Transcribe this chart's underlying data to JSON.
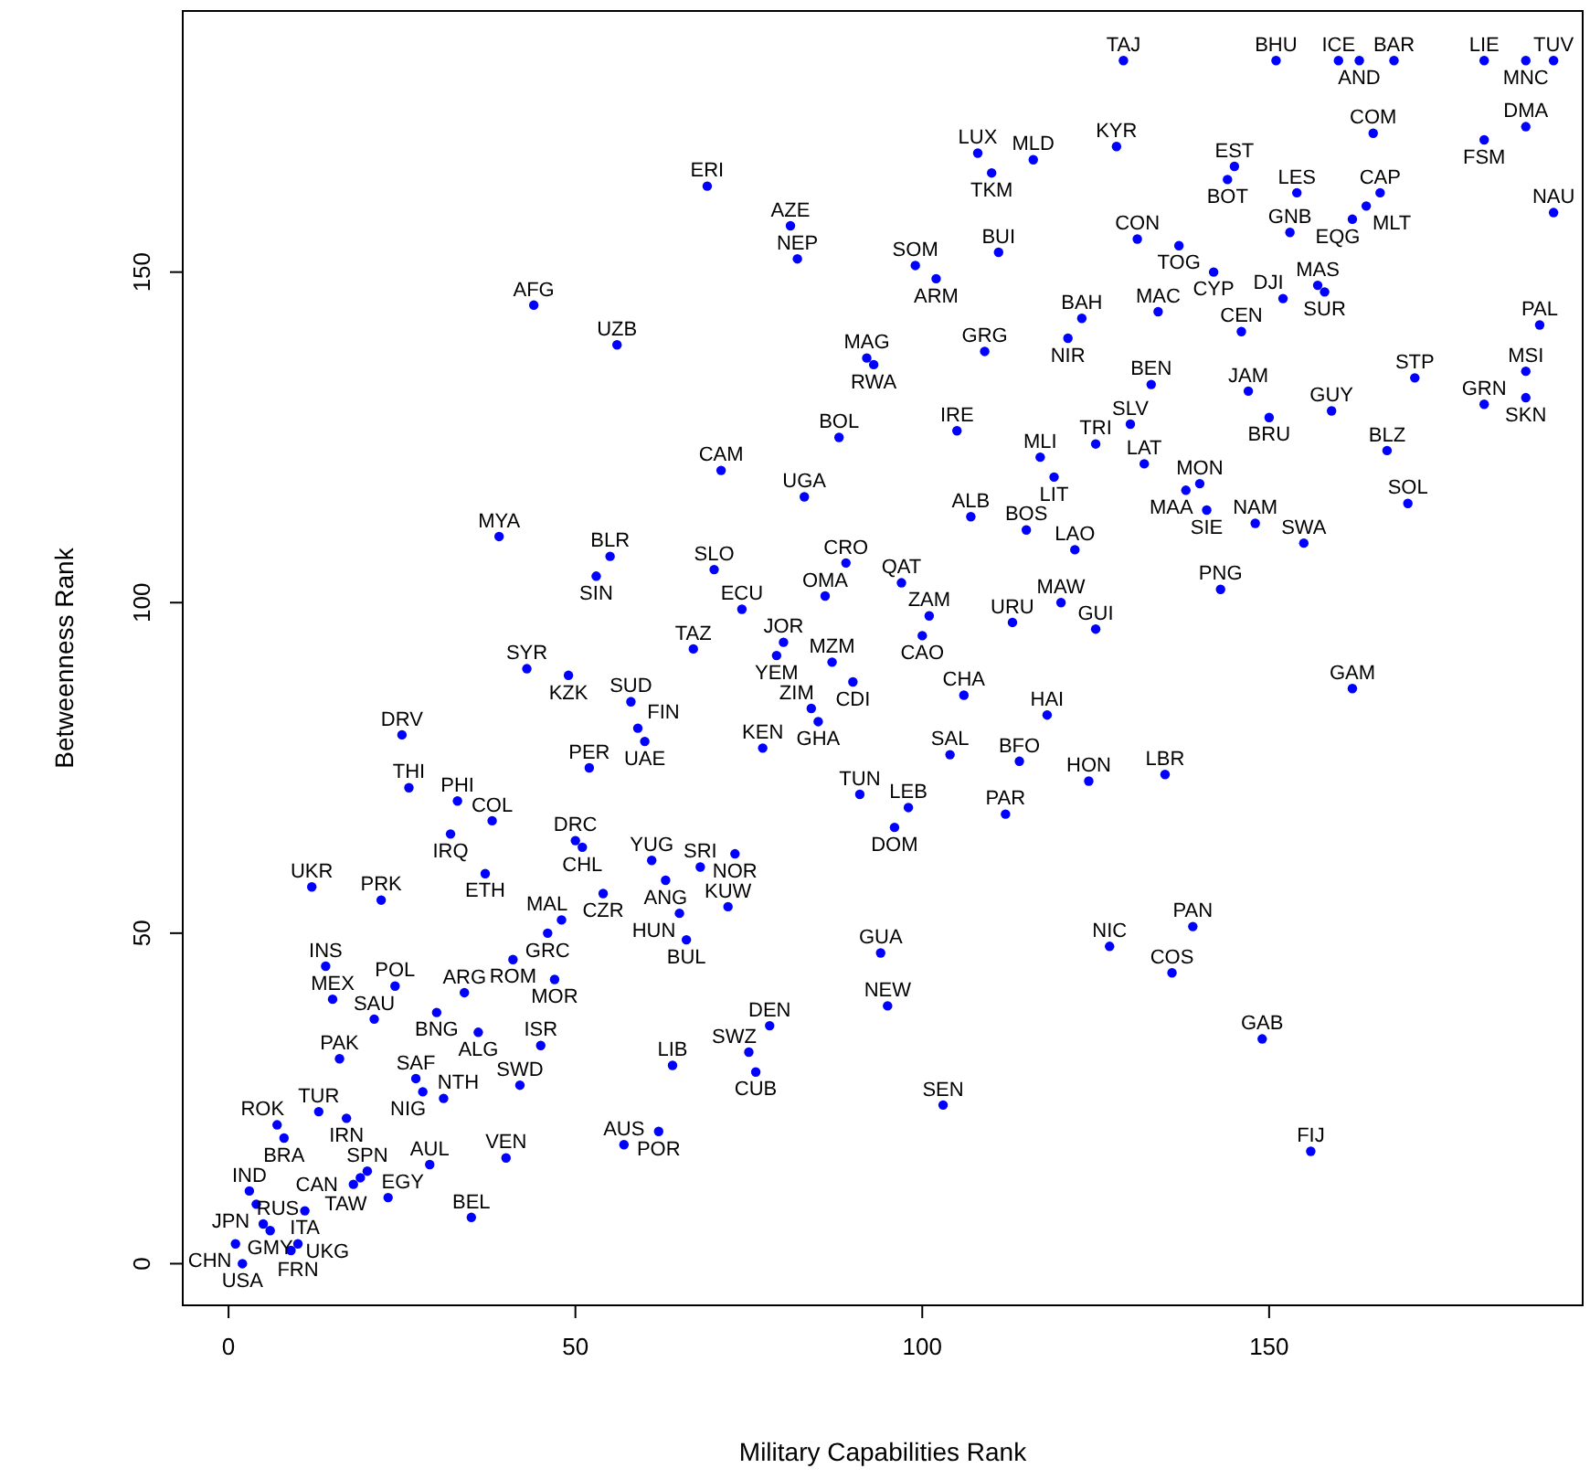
{
  "chart_data": {
    "type": "scatter",
    "xlabel": "Military Capabilities Rank",
    "ylabel": "Betweenness Rank",
    "xlim": [
      -6.6,
      195.2
    ],
    "ylim": [
      -6.3,
      189.5
    ],
    "xticks": [
      0,
      50,
      100,
      150
    ],
    "yticks": [
      0,
      50,
      100,
      150
    ],
    "grid": false,
    "marker": "circle",
    "series": [
      {
        "color": "#0000ff",
        "x": [
          44,
          56,
          39,
          55,
          53,
          69,
          81,
          82,
          99,
          102,
          108,
          110,
          116,
          111,
          123,
          121,
          92,
          93,
          109,
          88,
          105,
          71,
          83,
          117,
          119,
          125,
          107,
          115,
          122,
          70,
          89,
          97,
          86,
          74,
          101,
          100,
          113,
          120,
          125,
          67,
          80,
          79,
          129,
          151,
          160,
          163,
          168,
          181,
          187,
          191,
          165,
          187,
          181,
          128,
          145,
          144,
          154,
          166,
          164,
          162,
          191,
          153,
          131,
          137,
          142,
          157,
          158,
          152,
          134,
          146,
          189,
          133,
          171,
          187,
          187,
          181,
          147,
          150,
          159,
          130,
          167,
          132,
          140,
          138,
          141,
          148,
          155,
          170,
          143,
          43,
          49,
          58,
          59,
          60,
          25,
          52,
          26,
          33,
          38,
          32,
          50,
          51,
          37,
          12,
          22,
          54,
          48,
          46,
          41,
          47,
          14,
          24,
          15,
          34,
          21,
          30,
          36,
          45,
          16,
          27,
          28,
          31,
          42,
          13,
          17,
          7,
          8,
          57,
          40,
          29,
          20,
          19,
          18,
          23,
          3,
          4,
          11,
          35,
          5,
          6,
          10,
          9,
          1,
          2,
          87,
          90,
          84,
          85,
          77,
          106,
          118,
          104,
          114,
          124,
          91,
          98,
          96,
          112,
          61,
          68,
          73,
          63,
          65,
          72,
          66,
          94,
          95,
          78,
          75,
          76,
          64,
          103,
          62,
          162,
          135,
          139,
          127,
          136,
          149,
          156
        ],
        "values": [
          145,
          139,
          110,
          107,
          104,
          163,
          157,
          152,
          151,
          149,
          168,
          165,
          167,
          153,
          143,
          140,
          137,
          136,
          138,
          125,
          126,
          120,
          116,
          122,
          119,
          124,
          113,
          111,
          108,
          105,
          106,
          103,
          101,
          99,
          98,
          95,
          97,
          100,
          96,
          93,
          94,
          92,
          182,
          182,
          182,
          182,
          182,
          182,
          182,
          182,
          171,
          172,
          170,
          169,
          166,
          164,
          162,
          162,
          160,
          158,
          159,
          156,
          155,
          154,
          150,
          148,
          147,
          146,
          144,
          141,
          142,
          133,
          134,
          135,
          131,
          130,
          132,
          128,
          129,
          127,
          123,
          121,
          118,
          117,
          114,
          112,
          109,
          115,
          102,
          90,
          89,
          85,
          81,
          79,
          80,
          75,
          72,
          70,
          67,
          65,
          64,
          63,
          59,
          57,
          55,
          56,
          52,
          50,
          46,
          43,
          45,
          42,
          40,
          41,
          37,
          38,
          35,
          33,
          31,
          28,
          26,
          25,
          27,
          23,
          22,
          21,
          19,
          18,
          16,
          15,
          14,
          13,
          12,
          10,
          11,
          9,
          8,
          7,
          6,
          5,
          3,
          2,
          3,
          0,
          91,
          88,
          84,
          82,
          78,
          86,
          83,
          77,
          76,
          73,
          71,
          69,
          66,
          68,
          61,
          60,
          62,
          58,
          53,
          54,
          49,
          47,
          39,
          36,
          32,
          29,
          30,
          24,
          20,
          87,
          74,
          51,
          48,
          44,
          34,
          17
        ],
        "value_labels": [
          "AFG",
          "UZB",
          "MYA",
          "BLR",
          "SIN",
          "ERI",
          "AZE",
          "NEP",
          "SOM",
          "ARM",
          "LUX",
          "TKM",
          "MLD",
          "BUI",
          "BAH",
          "NIR",
          "MAG",
          "RWA",
          "GRG",
          "BOL",
          "IRE",
          "CAM",
          "UGA",
          "MLI",
          "LIT",
          "TRI",
          "ALB",
          "BOS",
          "LAO",
          "SLO",
          "CRO",
          "QAT",
          "OMA",
          "ECU",
          "ZAM",
          "CAO",
          "URU",
          "MAW",
          "GUI",
          "TAZ",
          "JOR",
          "YEM",
          "TAJ",
          "BHU",
          "ICE",
          "AND",
          "BAR",
          "LIE",
          "MNC",
          "TUV",
          "COM",
          "DMA",
          "FSM",
          "KYR",
          "EST",
          "BOT",
          "LES",
          "CAP",
          "MLT",
          "EQG",
          "NAU",
          "GNB",
          "CON",
          "TOG",
          "CYP",
          "MAS",
          "SUR",
          "DJI",
          "MAC",
          "CEN",
          "PAL",
          "BEN",
          "STP",
          "MSI",
          "SKN",
          "GRN",
          "JAM",
          "BRU",
          "GUY",
          "SLV",
          "BLZ",
          "LAT",
          "MON",
          "MAA",
          "SIE",
          "NAM",
          "SWA",
          "SOL",
          "PNG",
          "SYR",
          "KZK",
          "SUD",
          "FIN",
          "UAE",
          "DRV",
          "PER",
          "THI",
          "PHI",
          "COL",
          "IRQ",
          "DRC",
          "CHL",
          "ETH",
          "UKR",
          "PRK",
          "CZR",
          "MAL",
          "GRC",
          "ROM",
          "MOR",
          "INS",
          "POL",
          "MEX",
          "ARG",
          "SAU",
          "BNG",
          "ALG",
          "ISR",
          "PAK",
          "SAF",
          "NIG",
          "NTH",
          "SWD",
          "TUR",
          "IRN",
          "ROK",
          "BRA",
          "AUS",
          "VEN",
          "AUL",
          "SPN",
          "TAW",
          "CAN",
          "EGY",
          "IND",
          "JPN",
          "ITA",
          "BEL",
          "RUS",
          "GMY",
          "FRN",
          "UKG",
          "CHN",
          "USA",
          "MZM",
          "CDI",
          "ZIM",
          "GHA",
          "KEN",
          "CHA",
          "HAI",
          "SAL",
          "BFO",
          "HON",
          "TUN",
          "LEB",
          "DOM",
          "PAR",
          "YUG",
          "SRI",
          "NOR",
          "ANG",
          "HUN",
          "KUW",
          "BUL",
          "GUA",
          "NEW",
          "DEN",
          "SWZ",
          "CUB",
          "LIB",
          "SEN",
          "POR",
          "GAM",
          "LBR",
          "PAN",
          "NIC",
          "COS",
          "GAB",
          "FIJ"
        ]
      }
    ]
  }
}
